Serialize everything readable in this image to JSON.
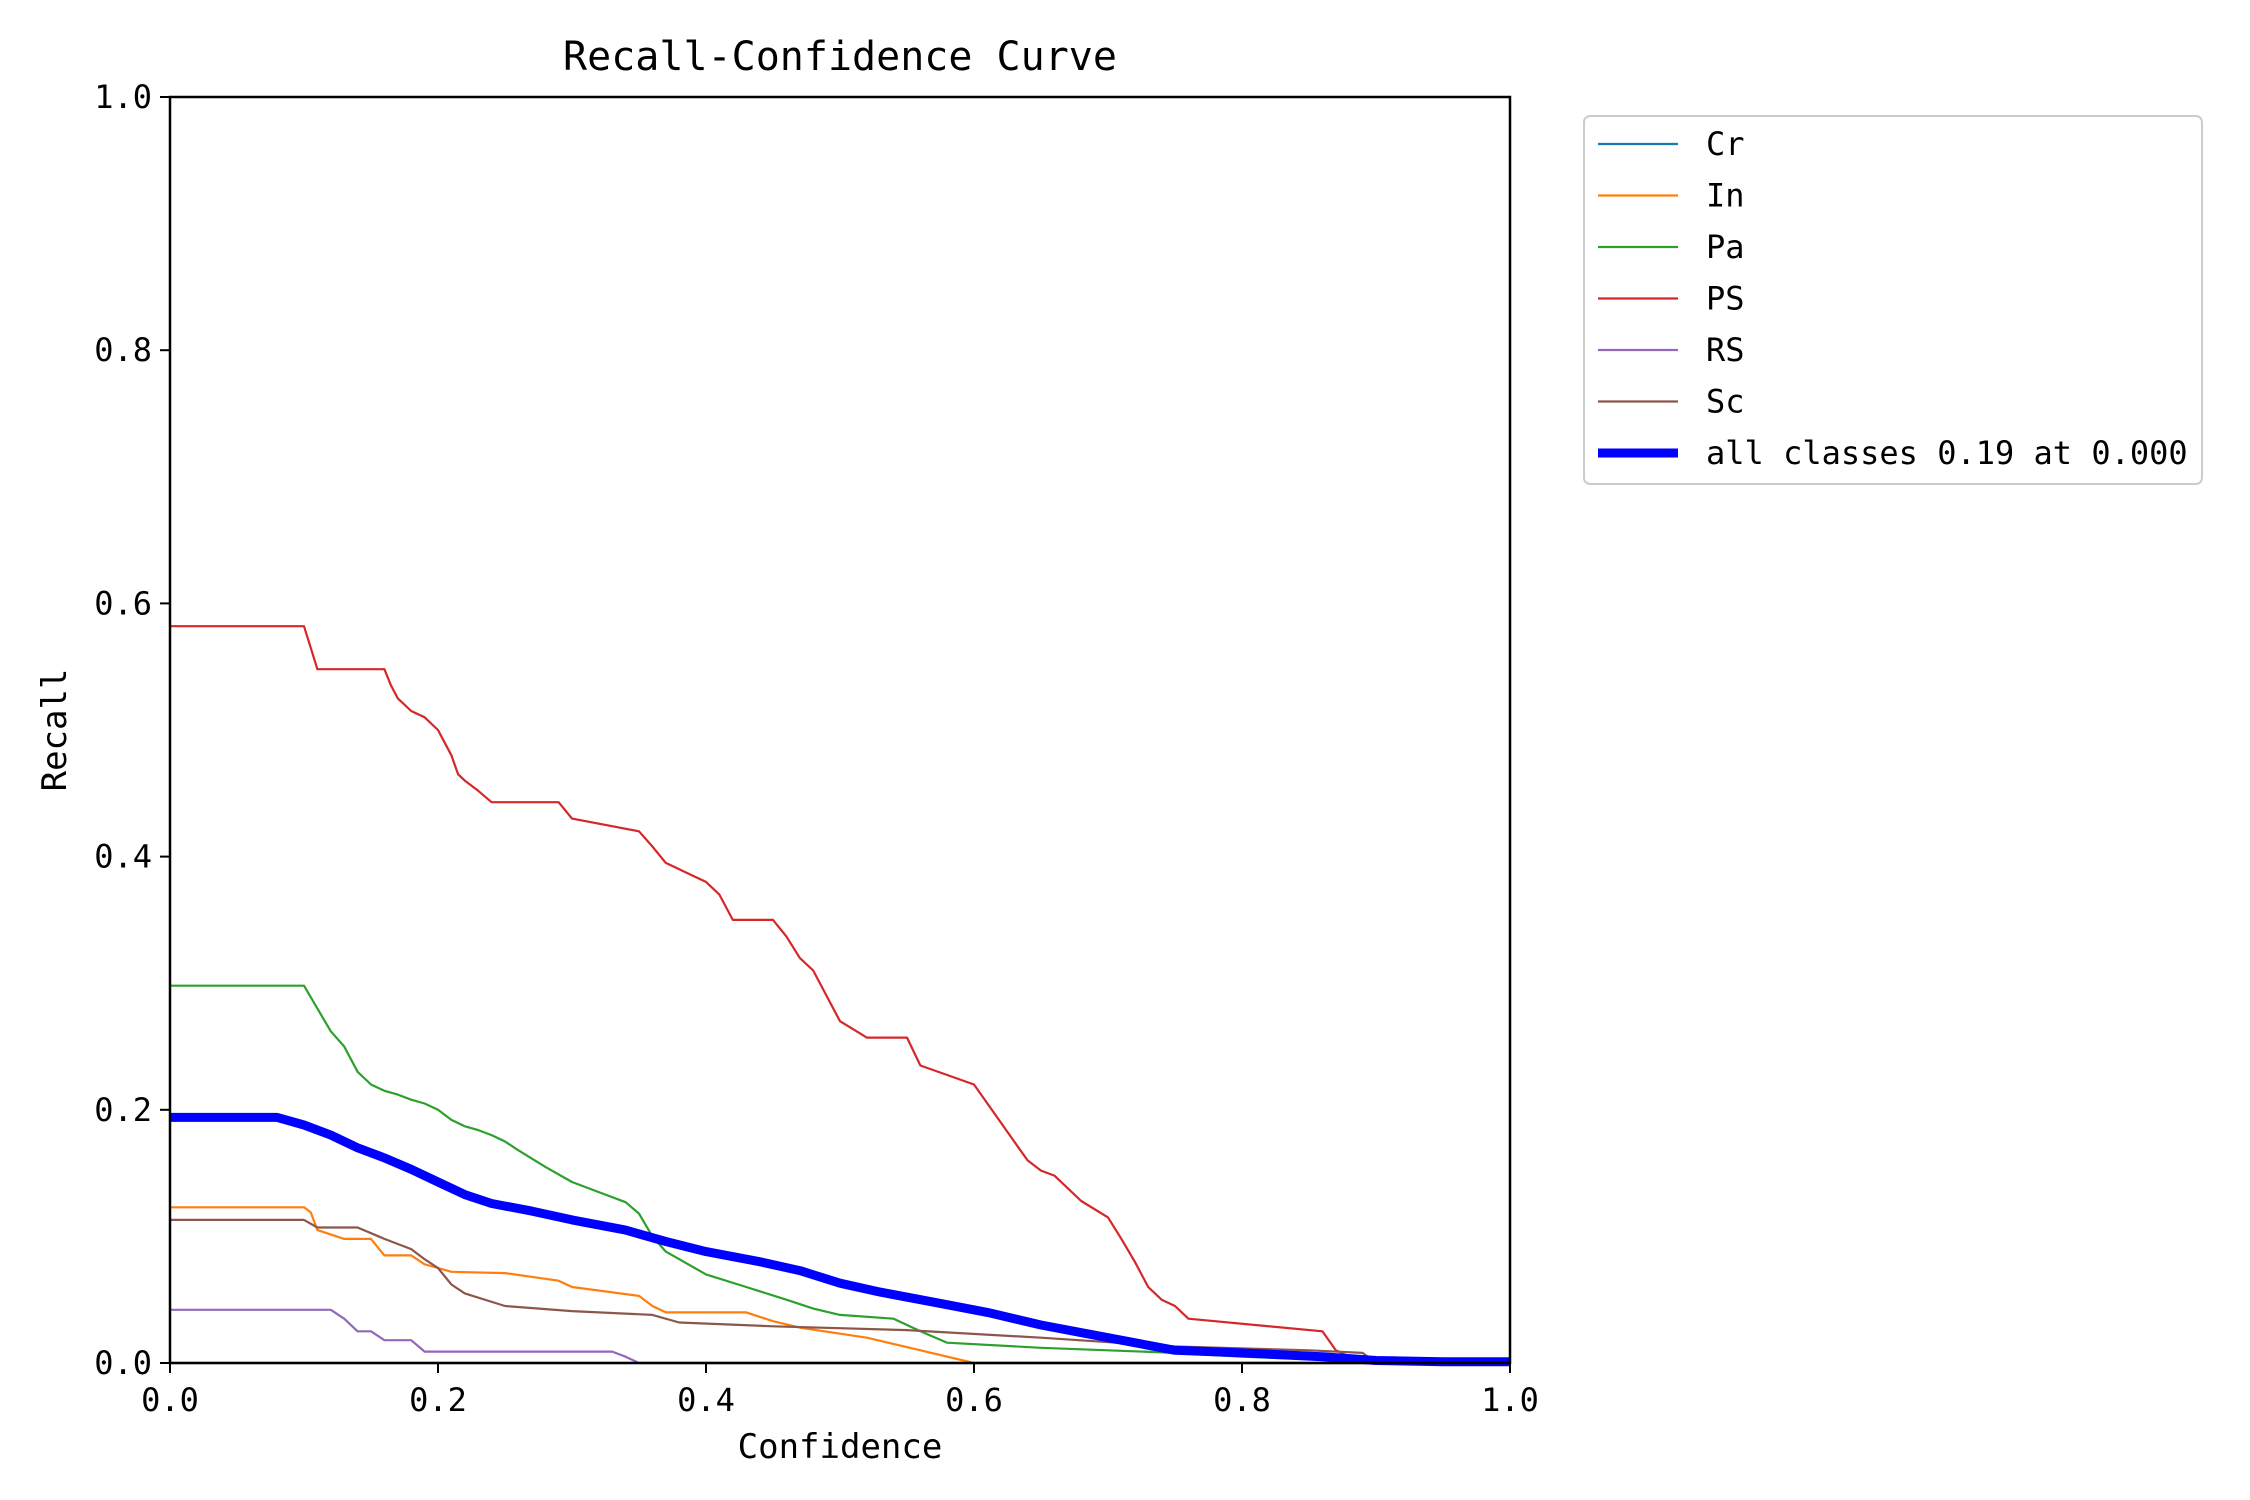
{
  "chart_data": {
    "type": "line",
    "title": "Recall-Confidence Curve",
    "xlabel": "Confidence",
    "ylabel": "Recall",
    "xlim": [
      0,
      1
    ],
    "ylim": [
      0,
      1
    ],
    "xticks": [
      "0.0",
      "0.2",
      "0.4",
      "0.6",
      "0.8",
      "1.0"
    ],
    "yticks": [
      "0.0",
      "0.2",
      "0.4",
      "0.6",
      "0.8",
      "1.0"
    ],
    "grid": false,
    "legend_placement": "outside-upper-right",
    "series": [
      {
        "name": "Cr",
        "color": "#1f77b4",
        "width": "thin",
        "x": [
          0,
          1
        ],
        "y": [
          0,
          0
        ]
      },
      {
        "name": "In",
        "color": "#ff7f0e",
        "width": "thin",
        "x": [
          0,
          0.1,
          0.105,
          0.11,
          0.13,
          0.15,
          0.16,
          0.18,
          0.19,
          0.2,
          0.21,
          0.25,
          0.29,
          0.3,
          0.35,
          0.36,
          0.37,
          0.43,
          0.45,
          0.47,
          0.52,
          0.56,
          0.6,
          1.0
        ],
        "y": [
          0.123,
          0.123,
          0.119,
          0.105,
          0.098,
          0.098,
          0.085,
          0.085,
          0.078,
          0.075,
          0.072,
          0.071,
          0.065,
          0.06,
          0.053,
          0.045,
          0.04,
          0.04,
          0.033,
          0.028,
          0.02,
          0.01,
          0.0,
          0.0
        ]
      },
      {
        "name": "Pa",
        "color": "#2ca02c",
        "width": "thin",
        "x": [
          0,
          0.1,
          0.11,
          0.12,
          0.13,
          0.14,
          0.15,
          0.16,
          0.17,
          0.18,
          0.19,
          0.2,
          0.21,
          0.22,
          0.23,
          0.24,
          0.25,
          0.26,
          0.28,
          0.3,
          0.32,
          0.34,
          0.35,
          0.36,
          0.37,
          0.4,
          0.43,
          0.46,
          0.48,
          0.5,
          0.54,
          0.56,
          0.58,
          0.65,
          0.7,
          0.75,
          0.8,
          0.85,
          1.0
        ],
        "y": [
          0.298,
          0.298,
          0.28,
          0.262,
          0.25,
          0.23,
          0.22,
          0.215,
          0.212,
          0.208,
          0.205,
          0.2,
          0.192,
          0.187,
          0.184,
          0.18,
          0.175,
          0.168,
          0.155,
          0.143,
          0.135,
          0.127,
          0.118,
          0.1,
          0.088,
          0.07,
          0.06,
          0.05,
          0.043,
          0.038,
          0.035,
          0.025,
          0.016,
          0.012,
          0.01,
          0.008,
          0.005,
          0.003,
          0.002
        ]
      },
      {
        "name": "PS",
        "color": "#d62728",
        "width": "thin",
        "x": [
          0,
          0.1,
          0.105,
          0.11,
          0.16,
          0.165,
          0.17,
          0.18,
          0.19,
          0.2,
          0.21,
          0.215,
          0.22,
          0.23,
          0.24,
          0.29,
          0.3,
          0.35,
          0.36,
          0.37,
          0.38,
          0.39,
          0.4,
          0.41,
          0.42,
          0.45,
          0.46,
          0.47,
          0.48,
          0.49,
          0.5,
          0.52,
          0.55,
          0.56,
          0.6,
          0.61,
          0.62,
          0.63,
          0.64,
          0.65,
          0.66,
          0.68,
          0.7,
          0.71,
          0.72,
          0.73,
          0.74,
          0.75,
          0.76,
          0.86,
          0.87,
          0.88,
          1.0
        ],
        "y": [
          0.582,
          0.582,
          0.565,
          0.548,
          0.548,
          0.535,
          0.525,
          0.515,
          0.51,
          0.5,
          0.48,
          0.465,
          0.46,
          0.452,
          0.443,
          0.443,
          0.43,
          0.42,
          0.408,
          0.395,
          0.39,
          0.385,
          0.38,
          0.37,
          0.35,
          0.35,
          0.337,
          0.32,
          0.31,
          0.29,
          0.27,
          0.257,
          0.257,
          0.235,
          0.22,
          0.205,
          0.19,
          0.175,
          0.16,
          0.152,
          0.148,
          0.128,
          0.115,
          0.098,
          0.08,
          0.06,
          0.05,
          0.045,
          0.035,
          0.025,
          0.01,
          0.005,
          0.0
        ]
      },
      {
        "name": "RS",
        "color": "#9467bd",
        "width": "thin",
        "x": [
          0,
          0.12,
          0.13,
          0.14,
          0.15,
          0.16,
          0.18,
          0.19,
          0.33,
          0.34,
          0.35,
          1.0
        ],
        "y": [
          0.042,
          0.042,
          0.035,
          0.025,
          0.025,
          0.018,
          0.018,
          0.009,
          0.009,
          0.005,
          0.0,
          0.0
        ]
      },
      {
        "name": "Sc",
        "color": "#8c564b",
        "width": "thin",
        "x": [
          0,
          0.1,
          0.11,
          0.14,
          0.16,
          0.18,
          0.19,
          0.2,
          0.21,
          0.22,
          0.25,
          0.3,
          0.36,
          0.38,
          0.45,
          0.55,
          0.65,
          0.75,
          0.85,
          0.89,
          0.9,
          1.0
        ],
        "y": [
          0.113,
          0.113,
          0.107,
          0.107,
          0.098,
          0.09,
          0.082,
          0.075,
          0.062,
          0.055,
          0.045,
          0.041,
          0.038,
          0.032,
          0.029,
          0.026,
          0.02,
          0.013,
          0.01,
          0.008,
          0.0,
          0.0
        ]
      },
      {
        "name": "all classes 0.19 at 0.000",
        "color": "#0000ff",
        "width": "thick",
        "x": [
          0,
          0.04,
          0.08,
          0.1,
          0.12,
          0.14,
          0.16,
          0.18,
          0.2,
          0.22,
          0.24,
          0.27,
          0.3,
          0.34,
          0.37,
          0.4,
          0.44,
          0.47,
          0.5,
          0.53,
          0.57,
          0.61,
          0.65,
          0.7,
          0.75,
          0.8,
          0.86,
          0.9,
          0.95,
          1.0
        ],
        "y": [
          0.194,
          0.194,
          0.194,
          0.188,
          0.18,
          0.17,
          0.162,
          0.153,
          0.143,
          0.133,
          0.126,
          0.12,
          0.113,
          0.105,
          0.096,
          0.088,
          0.08,
          0.073,
          0.063,
          0.056,
          0.048,
          0.04,
          0.03,
          0.02,
          0.01,
          0.008,
          0.005,
          0.002,
          0.001,
          0.001
        ]
      }
    ]
  }
}
